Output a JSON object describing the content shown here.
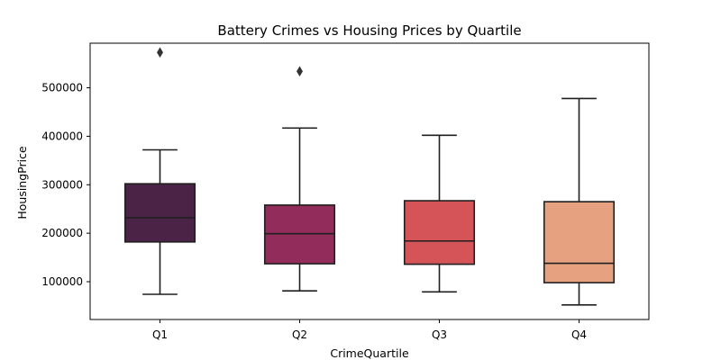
{
  "chart_data": {
    "type": "box",
    "title": "Battery Crimes vs Housing Prices by Quartile",
    "xlabel": "CrimeQuartile",
    "ylabel": "HousingPrice",
    "ylim": [
      22000,
      592000
    ],
    "yticks": [
      100000,
      200000,
      300000,
      400000,
      500000
    ],
    "ytick_labels": [
      "100000",
      "200000",
      "300000",
      "400000",
      "500000"
    ],
    "grid": false,
    "categories": [
      "Q1",
      "Q2",
      "Q3",
      "Q4"
    ],
    "boxes": [
      {
        "category": "Q1",
        "whisker_low": 74000,
        "q1": 182000,
        "median": 232000,
        "q3": 302000,
        "whisker_high": 372000,
        "outliers": [
          573000
        ],
        "color": "#4a2346"
      },
      {
        "category": "Q2",
        "whisker_low": 81000,
        "q1": 137000,
        "median": 199000,
        "q3": 258000,
        "whisker_high": 417000,
        "outliers": [
          534000
        ],
        "color": "#922c5b"
      },
      {
        "category": "Q3",
        "whisker_low": 79000,
        "q1": 136000,
        "median": 184000,
        "q3": 267000,
        "whisker_high": 402000,
        "outliers": [],
        "color": "#d55457"
      },
      {
        "category": "Q4",
        "whisker_low": 52000,
        "q1": 98000,
        "median": 138000,
        "q3": 265000,
        "whisker_high": 478000,
        "outliers": [],
        "color": "#e6a280"
      }
    ]
  }
}
